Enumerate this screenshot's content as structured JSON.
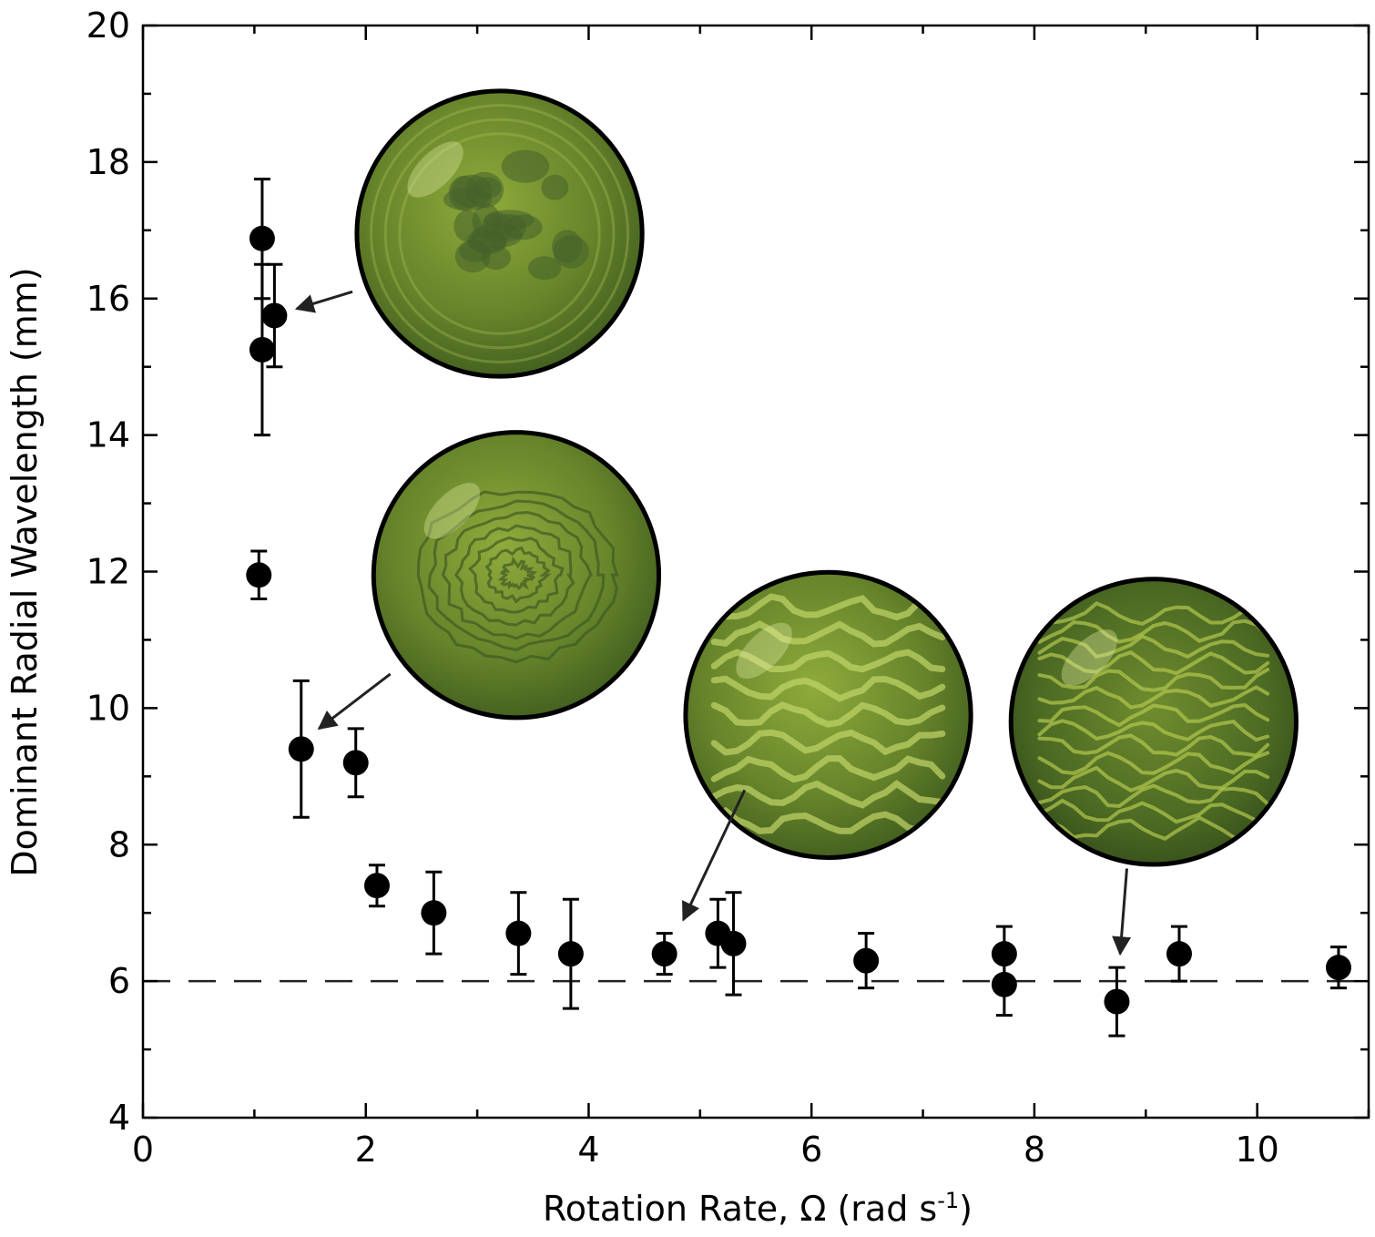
{
  "chart_data": {
    "type": "scatter",
    "title": "",
    "xlabel_main": "Rotation Rate, Ω (rad s",
    "xlabel_sup": "-1",
    "xlabel_end": ")",
    "ylabel": "Dominant Radial Wavelength (mm)",
    "xlim": [
      0,
      11
    ],
    "ylim": [
      4,
      20
    ],
    "xticks": [
      0,
      2,
      4,
      6,
      8,
      10
    ],
    "yticks": [
      4,
      6,
      8,
      10,
      12,
      14,
      16,
      18,
      20
    ],
    "xtick_labels": [
      "0",
      "2",
      "4",
      "6",
      "8",
      "10"
    ],
    "ytick_labels": [
      "4",
      "6",
      "8",
      "10",
      "12",
      "14",
      "16",
      "18",
      "20"
    ],
    "reference_line_y": 6,
    "reference_line_style": "dashed",
    "grid": false,
    "marker_color": "#000000",
    "points": [
      {
        "x": 1.07,
        "y": 16.88,
        "lo": 16.0,
        "hi": 17.75
      },
      {
        "x": 1.07,
        "y": 15.25,
        "lo": 14.0,
        "hi": 16.5
      },
      {
        "x": 1.18,
        "y": 15.75,
        "lo": 15.0,
        "hi": 16.5
      },
      {
        "x": 1.04,
        "y": 11.95,
        "lo": 11.6,
        "hi": 12.3
      },
      {
        "x": 1.42,
        "y": 9.4,
        "lo": 8.4,
        "hi": 10.4
      },
      {
        "x": 1.91,
        "y": 9.2,
        "lo": 8.7,
        "hi": 9.7
      },
      {
        "x": 2.1,
        "y": 7.4,
        "lo": 7.1,
        "hi": 7.7
      },
      {
        "x": 2.61,
        "y": 7.0,
        "lo": 6.4,
        "hi": 7.6
      },
      {
        "x": 3.37,
        "y": 6.7,
        "lo": 6.1,
        "hi": 7.3
      },
      {
        "x": 3.84,
        "y": 6.4,
        "lo": 5.6,
        "hi": 7.2
      },
      {
        "x": 4.68,
        "y": 6.4,
        "lo": 6.1,
        "hi": 6.7
      },
      {
        "x": 5.16,
        "y": 6.7,
        "lo": 6.2,
        "hi": 7.2
      },
      {
        "x": 5.3,
        "y": 6.55,
        "lo": 5.8,
        "hi": 7.3
      },
      {
        "x": 6.49,
        "y": 6.3,
        "lo": 5.9,
        "hi": 6.7
      },
      {
        "x": 7.73,
        "y": 6.4,
        "lo": 6.0,
        "hi": 6.8
      },
      {
        "x": 7.73,
        "y": 5.95,
        "lo": 5.5,
        "hi": 6.4
      },
      {
        "x": 8.74,
        "y": 5.7,
        "lo": 5.2,
        "hi": 6.2
      },
      {
        "x": 9.3,
        "y": 6.4,
        "lo": 6.0,
        "hi": 6.8
      },
      {
        "x": 10.73,
        "y": 6.2,
        "lo": 5.9,
        "hi": 6.5
      }
    ],
    "insets": [
      {
        "name": "inset-photo-omega-1",
        "cx_data": 3.2,
        "cy_data": 16.95,
        "r_data_x": 1.28,
        "pattern": "blobs",
        "arrow_from": [
          1.88,
          16.1
        ],
        "arrow_to": [
          1.38,
          15.85
        ]
      },
      {
        "name": "inset-photo-omega-2",
        "cx_data": 3.35,
        "cy_data": 11.95,
        "r_data_x": 1.28,
        "pattern": "rings",
        "arrow_from": [
          2.22,
          10.5
        ],
        "arrow_to": [
          1.58,
          9.7
        ]
      },
      {
        "name": "inset-photo-omega-3",
        "cx_data": 6.15,
        "cy_data": 9.9,
        "r_data_x": 1.28,
        "pattern": "waves",
        "arrow_from": [
          5.4,
          8.8
        ],
        "arrow_to": [
          4.85,
          6.9
        ]
      },
      {
        "name": "inset-photo-omega-4",
        "cx_data": 9.07,
        "cy_data": 9.8,
        "r_data_x": 1.28,
        "pattern": "fine",
        "arrow_from": [
          8.83,
          7.65
        ],
        "arrow_to": [
          8.77,
          6.4
        ]
      }
    ]
  }
}
